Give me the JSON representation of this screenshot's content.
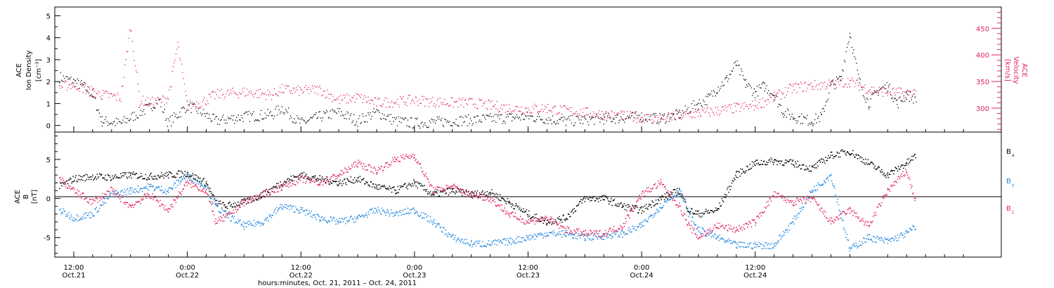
{
  "colors": {
    "black": "#000000",
    "pink": "#e2245e",
    "blue": "#1f86e0",
    "axis_right": "#e2245e"
  },
  "chart_data": [
    {
      "type": "scatter",
      "panel": "top",
      "ylabel_left": [
        "ACE",
        "Ion Density",
        "[cm⁻³]"
      ],
      "ylabel_right": [
        "ACE",
        "Velocity",
        "[km/s]"
      ],
      "ylim_left": [
        -0.3,
        5.4
      ],
      "ylim_right": [
        255,
        490
      ],
      "y_ticks_left": [
        "0",
        "1",
        "2",
        "3",
        "4",
        "5"
      ],
      "y_tick_values_left": [
        0,
        1,
        2,
        3,
        4,
        5
      ],
      "y_ticks_right": [
        "300",
        "350",
        "400",
        "450"
      ],
      "y_tick_values_right": [
        300,
        350,
        400,
        450
      ],
      "series": [
        {
          "color": "black",
          "axis": "left",
          "points": [
            [
              10.5,
              2.2
            ],
            [
              12,
              2.0
            ],
            [
              13,
              1.8
            ],
            [
              14,
              1.4
            ],
            [
              15,
              0.2
            ],
            [
              17,
              0.1
            ],
            [
              19,
              0.6
            ],
            [
              20,
              0.8
            ],
            [
              21,
              1.2
            ],
            [
              22,
              0.1
            ],
            [
              24,
              0.9
            ],
            [
              25.5,
              0.6
            ],
            [
              27,
              0.2
            ],
            [
              30,
              0.4
            ],
            [
              33,
              0.5
            ],
            [
              34,
              0.8
            ],
            [
              36,
              0.1
            ],
            [
              38,
              0.4
            ],
            [
              40,
              0.6
            ],
            [
              42,
              0.2
            ],
            [
              44,
              0.6
            ],
            [
              46,
              0.2
            ],
            [
              48,
              0.1
            ],
            [
              52,
              0.2
            ],
            [
              56,
              0.3
            ],
            [
              60,
              0.4
            ],
            [
              64,
              0.2
            ],
            [
              68,
              0.3
            ],
            [
              72,
              0.4
            ],
            [
              74,
              0.3
            ],
            [
              76,
              0.5
            ],
            [
              78,
              1.0
            ],
            [
              79,
              1.2
            ],
            [
              80,
              1.7
            ],
            [
              81,
              2.1
            ],
            [
              82,
              2.8
            ],
            [
              83,
              1.9
            ],
            [
              84,
              1.5
            ],
            [
              85,
              1.8
            ],
            [
              86,
              1.4
            ],
            [
              87,
              0.6
            ],
            [
              88,
              0.4
            ],
            [
              89,
              0.3
            ],
            [
              90,
              0.2
            ],
            [
              91,
              0.4
            ],
            [
              92,
              1.8
            ],
            [
              93,
              2.1
            ],
            [
              94,
              4.2
            ],
            [
              95,
              2.0
            ],
            [
              96,
              1.0
            ],
            [
              97,
              1.6
            ],
            [
              98,
              1.8
            ],
            [
              99,
              1.0
            ],
            [
              100,
              1.4
            ],
            [
              101,
              1.2
            ]
          ]
        },
        {
          "color": "pink",
          "axis": "right",
          "points": [
            [
              10.5,
              340
            ],
            [
              12,
              345
            ],
            [
              13,
              338
            ],
            [
              14,
              330
            ],
            [
              15,
              325
            ],
            [
              17,
              320
            ],
            [
              18,
              455
            ],
            [
              19,
              315
            ],
            [
              20,
              310
            ],
            [
              21,
              312
            ],
            [
              22,
              320
            ],
            [
              23,
              420
            ],
            [
              24,
              305
            ],
            [
              25.5,
              310
            ],
            [
              27,
              325
            ],
            [
              30,
              330
            ],
            [
              33,
              325
            ],
            [
              34,
              335
            ],
            [
              36,
              332
            ],
            [
              38,
              335
            ],
            [
              40,
              315
            ],
            [
              42,
              320
            ],
            [
              44,
              310
            ],
            [
              46,
              312
            ],
            [
              48,
              315
            ],
            [
              50,
              312
            ],
            [
              52,
              310
            ],
            [
              54,
              310
            ],
            [
              56,
              305
            ],
            [
              58,
              300
            ],
            [
              60,
              298
            ],
            [
              62,
              300
            ],
            [
              64,
              295
            ],
            [
              66,
              292
            ],
            [
              68,
              288
            ],
            [
              70,
              285
            ],
            [
              72,
              282
            ],
            [
              74,
              280
            ],
            [
              76,
              285
            ],
            [
              78,
              290
            ],
            [
              80,
              295
            ],
            [
              82,
              300
            ],
            [
              84,
              305
            ],
            [
              86,
              320
            ],
            [
              88,
              338
            ],
            [
              90,
              342
            ],
            [
              92,
              345
            ],
            [
              94,
              350
            ],
            [
              96,
              335
            ],
            [
              98,
              330
            ],
            [
              100,
              328
            ],
            [
              101,
              330
            ]
          ]
        }
      ]
    },
    {
      "type": "scatter",
      "panel": "bottom",
      "ylabel_left": [
        "ACE",
        "B",
        "[nT]"
      ],
      "ylim": [
        -7.5,
        8.5
      ],
      "y_ticks": [
        "-5",
        "0",
        "5"
      ],
      "y_tick_values": [
        -5,
        0,
        5
      ],
      "zero_line": true,
      "legend_placement": "right",
      "series": [
        {
          "name": "Bx",
          "label_main": "B",
          "label_sub": "x",
          "color": "black",
          "points": [
            [
              10.5,
              1.5
            ],
            [
              12,
              2.5
            ],
            [
              14,
              2.8
            ],
            [
              16,
              2.7
            ],
            [
              18,
              3.0
            ],
            [
              20,
              2.8
            ],
            [
              22,
              3.0
            ],
            [
              24,
              3.2
            ],
            [
              26,
              2.0
            ],
            [
              27,
              -0.5
            ],
            [
              28,
              -1.0
            ],
            [
              30,
              -0.5
            ],
            [
              32,
              0.5
            ],
            [
              34,
              2.0
            ],
            [
              36,
              3.0
            ],
            [
              38,
              2.5
            ],
            [
              40,
              2.0
            ],
            [
              42,
              2.5
            ],
            [
              44,
              1.5
            ],
            [
              46,
              1.0
            ],
            [
              48,
              2.0
            ],
            [
              50,
              0.5
            ],
            [
              52,
              1.0
            ],
            [
              54,
              0.5
            ],
            [
              56,
              0.8
            ],
            [
              58,
              -0.5
            ],
            [
              60,
              -2.0
            ],
            [
              62,
              -3.0
            ],
            [
              64,
              -2.5
            ],
            [
              66,
              0.0
            ],
            [
              68,
              0.0
            ],
            [
              70,
              -1.0
            ],
            [
              72,
              -1.5
            ],
            [
              74,
              0.0
            ],
            [
              76,
              1.0
            ],
            [
              77,
              -1.5
            ],
            [
              78,
              -2.0
            ],
            [
              80,
              -1.5
            ],
            [
              82,
              3.0
            ],
            [
              84,
              4.5
            ],
            [
              86,
              4.8
            ],
            [
              88,
              4.5
            ],
            [
              90,
              3.8
            ],
            [
              92,
              5.5
            ],
            [
              94,
              6.0
            ],
            [
              96,
              4.5
            ],
            [
              98,
              3.0
            ],
            [
              100,
              4.5
            ],
            [
              101,
              5.5
            ]
          ]
        },
        {
          "name": "By",
          "label_main": "B",
          "label_sub": "y",
          "color": "blue",
          "points": [
            [
              10.5,
              -1.5
            ],
            [
              12,
              -2.5
            ],
            [
              14,
              -2.0
            ],
            [
              16,
              0.5
            ],
            [
              18,
              1.0
            ],
            [
              20,
              1.5
            ],
            [
              22,
              1.0
            ],
            [
              24,
              3.0
            ],
            [
              26,
              1.5
            ],
            [
              27,
              -1.0
            ],
            [
              28,
              -2.0
            ],
            [
              30,
              -3.5
            ],
            [
              32,
              -3.0
            ],
            [
              34,
              -1.0
            ],
            [
              36,
              -1.5
            ],
            [
              38,
              -2.5
            ],
            [
              40,
              -3.0
            ],
            [
              42,
              -2.5
            ],
            [
              44,
              -1.5
            ],
            [
              46,
              -2.0
            ],
            [
              48,
              -1.5
            ],
            [
              50,
              -3.0
            ],
            [
              52,
              -5.0
            ],
            [
              54,
              -5.8
            ],
            [
              56,
              -5.8
            ],
            [
              58,
              -5.5
            ],
            [
              60,
              -5.0
            ],
            [
              62,
              -4.5
            ],
            [
              64,
              -4.5
            ],
            [
              66,
              -5.0
            ],
            [
              68,
              -4.8
            ],
            [
              70,
              -4.5
            ],
            [
              72,
              -3.5
            ],
            [
              74,
              -1.0
            ],
            [
              76,
              1.0
            ],
            [
              77,
              -2.0
            ],
            [
              78,
              -4.0
            ],
            [
              80,
              -5.0
            ],
            [
              82,
              -6.0
            ],
            [
              84,
              -6.0
            ],
            [
              86,
              -6.0
            ],
            [
              88,
              -3.0
            ],
            [
              90,
              1.0
            ],
            [
              92,
              3.0
            ],
            [
              94,
              -6.5
            ],
            [
              96,
              -5.0
            ],
            [
              98,
              -5.5
            ],
            [
              100,
              -4.5
            ],
            [
              101,
              -3.5
            ]
          ]
        },
        {
          "name": "Bz",
          "label_main": "B",
          "label_sub": "z",
          "color": "pink",
          "points": [
            [
              10.5,
              2.5
            ],
            [
              12,
              1.0
            ],
            [
              14,
              -0.5
            ],
            [
              16,
              1.0
            ],
            [
              18,
              -1.0
            ],
            [
              20,
              0.5
            ],
            [
              22,
              -1.5
            ],
            [
              24,
              2.0
            ],
            [
              26,
              1.0
            ],
            [
              27,
              -3.0
            ],
            [
              28,
              -2.5
            ],
            [
              30,
              -0.5
            ],
            [
              32,
              0.5
            ],
            [
              34,
              1.5
            ],
            [
              36,
              2.5
            ],
            [
              38,
              2.0
            ],
            [
              40,
              3.0
            ],
            [
              42,
              4.5
            ],
            [
              44,
              3.5
            ],
            [
              46,
              5.0
            ],
            [
              48,
              5.5
            ],
            [
              50,
              1.0
            ],
            [
              52,
              1.5
            ],
            [
              54,
              0.5
            ],
            [
              56,
              0.0
            ],
            [
              58,
              -2.0
            ],
            [
              60,
              -3.0
            ],
            [
              62,
              -2.5
            ],
            [
              64,
              -4.0
            ],
            [
              66,
              -4.5
            ],
            [
              68,
              -4.5
            ],
            [
              70,
              -3.5
            ],
            [
              72,
              0.5
            ],
            [
              74,
              2.0
            ],
            [
              76,
              -1.0
            ],
            [
              77,
              -3.5
            ],
            [
              78,
              -5.0
            ],
            [
              80,
              -3.5
            ],
            [
              82,
              -4.0
            ],
            [
              84,
              -3.0
            ],
            [
              86,
              0.5
            ],
            [
              88,
              -0.5
            ],
            [
              90,
              0.0
            ],
            [
              92,
              -3.0
            ],
            [
              94,
              -1.5
            ],
            [
              96,
              -3.5
            ],
            [
              98,
              1.0
            ],
            [
              100,
              3.5
            ],
            [
              101,
              -0.5
            ]
          ]
        }
      ]
    }
  ],
  "x_axis": {
    "range_hours": [
      10,
      110
    ],
    "major_ticks": [
      {
        "hour": 12,
        "time": "12:00",
        "date": "Oct.21"
      },
      {
        "hour": 24,
        "time": "0:00",
        "date": "Oct.22"
      },
      {
        "hour": 36,
        "time": "12:00",
        "date": "Oct.22"
      },
      {
        "hour": 48,
        "time": "0:00",
        "date": "Oct.23"
      },
      {
        "hour": 60,
        "time": "12:00",
        "date": "Oct.23"
      },
      {
        "hour": 72,
        "time": "0:00",
        "date": "Oct.24"
      },
      {
        "hour": 84,
        "time": "12:00",
        "date": "Oct.24"
      }
    ],
    "label": "hours:minutes, Oct. 21, 2011 – Oct. 24, 2011"
  }
}
